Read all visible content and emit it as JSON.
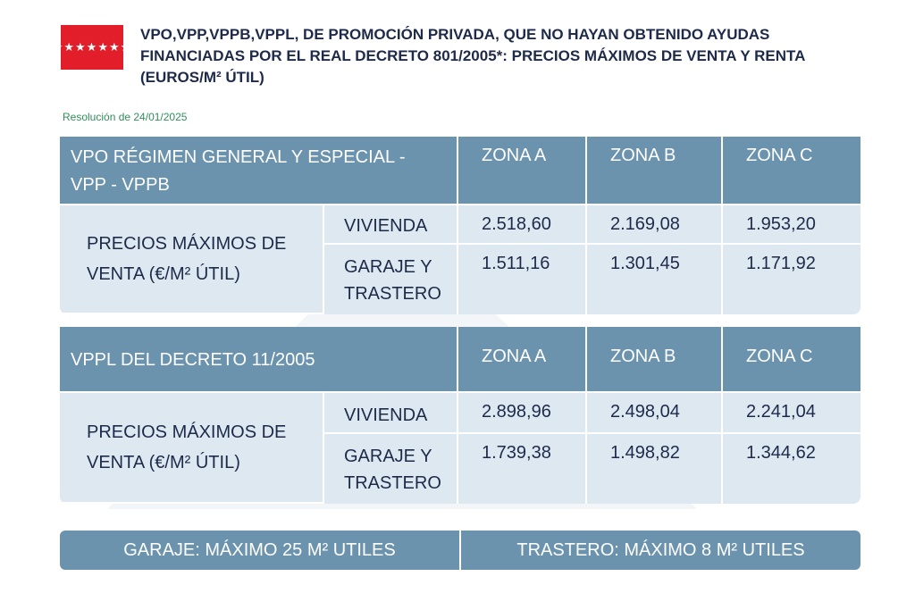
{
  "header": {
    "flag_stars": "★★★★★★★",
    "title": "VPO,VPP,VPPB,VPPL, DE PROMOCIÓN PRIVADA, QUE NO HAYAN OBTENIDO  AYUDAS FINANCIADAS POR EL REAL DECRETO 801/2005*: PRECIOS MÁXIMOS DE VENTA Y RENTA (EUROS/M² ÚTIL)",
    "resolution": "Resolución de 24/01/2025",
    "brand_color": "#e21e2b",
    "header_color": "#6b93ad"
  },
  "table1": {
    "title": "VPO RÉGIMEN GENERAL Y ESPECIAL - VPP - VPPB",
    "zones": [
      "ZONA A",
      "ZONA B",
      "ZONA C"
    ],
    "row_label": "PRECIOS MÁXIMOS DE VENTA (€/M² ÚTIL)",
    "rows": [
      {
        "type": "VIVIENDA",
        "values": [
          "2.518,60",
          "2.169,08",
          "1.953,20"
        ]
      },
      {
        "type": "GARAJE Y TRASTERO",
        "values": [
          "1.511,16",
          "1.301,45",
          "1.171,92"
        ]
      }
    ]
  },
  "table2": {
    "title": "VPPL DEL DECRETO 11/2005",
    "zones": [
      "ZONA A",
      "ZONA B",
      "ZONA C"
    ],
    "row_label": "PRECIOS MÁXIMOS DE VENTA (€/M² ÚTIL)",
    "rows": [
      {
        "type": "VIVIENDA",
        "values": [
          "2.898,96",
          "2.498,04",
          "2.241,04"
        ]
      },
      {
        "type": "GARAJE Y TRASTERO",
        "values": [
          "1.739,38",
          "1.498,82",
          "1.344,62"
        ]
      }
    ]
  },
  "footer": {
    "garage": "GARAJE: MÁXIMO 25 M² UTILES",
    "storage": "TRASTERO: MÁXIMO 8 M² UTILES"
  }
}
